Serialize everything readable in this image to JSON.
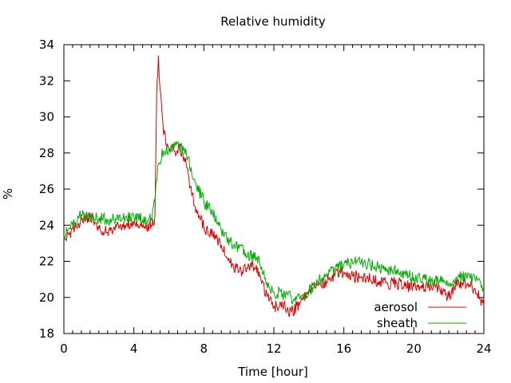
{
  "chart_data": {
    "type": "line",
    "title": "Relative humidity",
    "xlabel": "Time [hour]",
    "ylabel": "%",
    "xlim": [
      0,
      24
    ],
    "ylim": [
      18,
      34
    ],
    "xticks": [
      0,
      4,
      8,
      12,
      16,
      20,
      24
    ],
    "yticks": [
      18,
      20,
      22,
      24,
      26,
      28,
      30,
      32,
      34
    ],
    "grid": false,
    "legend_position": "bottom-right",
    "series": [
      {
        "name": "aerosol",
        "color": "#dd0000",
        "x": [
          0,
          0.5,
          1,
          1.5,
          2,
          2.5,
          3,
          3.5,
          4,
          4.5,
          5,
          5.2,
          5.3,
          5.4,
          5.5,
          5.7,
          6,
          6.3,
          6.6,
          7,
          7.5,
          8,
          8.5,
          9,
          9.5,
          10,
          10.5,
          11,
          11.3,
          11.6,
          12,
          12.5,
          13,
          13.5,
          14,
          14.5,
          15,
          15.5,
          16,
          16.5,
          17,
          17.5,
          18,
          18.5,
          19,
          19.5,
          20,
          20.5,
          21,
          21.5,
          22,
          22.5,
          23,
          23.5,
          24
        ],
        "y": [
          23.1,
          23.8,
          24.3,
          24.5,
          23.8,
          23.6,
          23.9,
          24.0,
          24.2,
          23.9,
          24.0,
          24.5,
          31.2,
          33.4,
          31.5,
          29.0,
          28.3,
          28.1,
          28.4,
          27.3,
          25.0,
          23.9,
          23.5,
          22.9,
          21.9,
          21.4,
          21.6,
          21.8,
          20.8,
          20.2,
          19.5,
          19.5,
          19.2,
          19.7,
          20.4,
          20.7,
          20.9,
          21.3,
          21.4,
          21.2,
          21.1,
          21.0,
          20.9,
          20.8,
          20.8,
          20.6,
          20.6,
          20.5,
          20.6,
          20.4,
          20.0,
          20.9,
          20.7,
          20.5,
          19.5
        ]
      },
      {
        "name": "sheath",
        "color": "#00aa00",
        "x": [
          0,
          0.5,
          1,
          1.5,
          2,
          2.5,
          3,
          3.5,
          4,
          4.5,
          5,
          5.2,
          5.4,
          5.7,
          6,
          6.3,
          6.6,
          7,
          7.5,
          8,
          8.5,
          9,
          9.5,
          10,
          10.5,
          11,
          11.3,
          11.6,
          12,
          12.5,
          13,
          13.5,
          14,
          14.5,
          15,
          15.5,
          16,
          16.5,
          17,
          17.5,
          18,
          18.5,
          19,
          19.5,
          20,
          20.5,
          21,
          21.5,
          22,
          22.5,
          23,
          23.5,
          24
        ],
        "y": [
          23.4,
          24.0,
          24.6,
          24.5,
          24.4,
          24.3,
          24.3,
          24.4,
          24.5,
          24.3,
          24.4,
          25.3,
          27.4,
          28.1,
          28.2,
          28.3,
          28.3,
          28.0,
          26.4,
          25.3,
          24.7,
          23.7,
          23.1,
          22.7,
          22.4,
          22.2,
          21.7,
          20.8,
          20.3,
          20.2,
          20.0,
          19.9,
          20.3,
          20.9,
          21.3,
          21.6,
          21.8,
          21.9,
          22.0,
          21.8,
          21.7,
          21.5,
          21.5,
          21.3,
          21.1,
          21.0,
          21.0,
          20.9,
          20.8,
          21.1,
          21.2,
          21.0,
          20.5
        ]
      }
    ]
  }
}
